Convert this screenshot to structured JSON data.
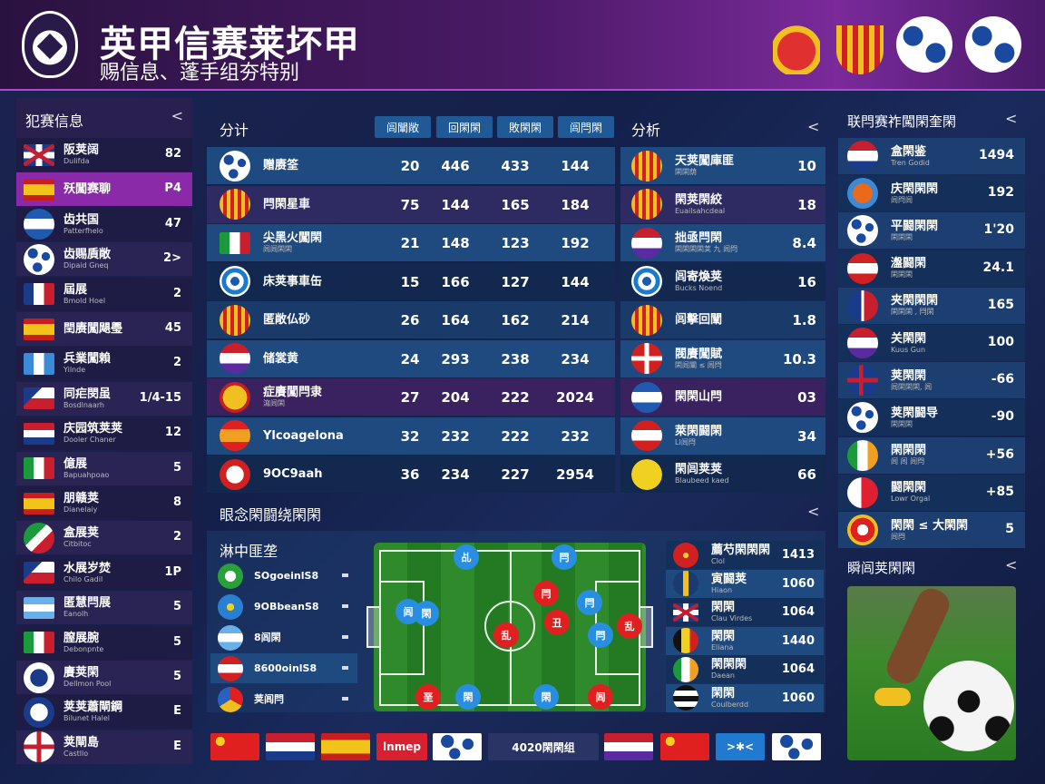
{
  "header": {
    "title": "英甲信赛莱坏甲",
    "subtitle": "赐信息、蓬手组夯特别"
  },
  "colors": {
    "accent": "#9b2fc0",
    "row_blue": "#1f4a80",
    "row_dark": "#12284f",
    "row_purple": "#3a2260"
  },
  "left": {
    "title": "犯赛信息",
    "rows": [
      {
        "icon": "uk",
        "name": "阪荚阔",
        "sub": "Dulifda",
        "value": "82"
      },
      {
        "icon": "spain",
        "name": "殀闖赛聊",
        "sub": "",
        "value": "P4",
        "active": true
      },
      {
        "icon": "blue-white",
        "name": "齿共国",
        "sub": "Patterfhelo",
        "value": "47"
      },
      {
        "icon": "ball",
        "name": "齿赐貭敞",
        "sub": "Dipaid Gneq",
        "value": "2>"
      },
      {
        "icon": "france",
        "name": "屆展",
        "sub": "Bmold Hoel",
        "value": "2"
      },
      {
        "icon": "spain",
        "name": "閏赓闖飓璺",
        "sub": "",
        "value": "45"
      },
      {
        "icon": "guatemala",
        "name": "兵業闖賴",
        "sub": "Yilnde",
        "value": "2"
      },
      {
        "icon": "czech",
        "name": "同疟閔虽",
        "sub": "Bosdlnaarh",
        "value": "1/4-15"
      },
      {
        "icon": "netherlands",
        "name": "庆园筑荚荚",
        "sub": "Dooler Chaner",
        "value": "12"
      },
      {
        "icon": "italy",
        "name": "億展",
        "sub": "Bapuahpoao",
        "value": "5"
      },
      {
        "icon": "spain",
        "name": "朋赣荚",
        "sub": "Dianelaiy",
        "value": "8"
      },
      {
        "icon": "mexico",
        "name": "盒展荚",
        "sub": "Citbitoc",
        "value": "2"
      },
      {
        "icon": "czech",
        "name": "水展岁焚",
        "sub": "Chilo Gadil",
        "value": "1P"
      },
      {
        "icon": "argentina",
        "name": "匿慧閂展",
        "sub": "Eanolh",
        "value": "5"
      },
      {
        "icon": "italy",
        "name": "膣展腕",
        "sub": "Debonpnte",
        "value": "5"
      },
      {
        "icon": "crest-blue",
        "name": "賡荚閑",
        "sub": "Dellmon Pool",
        "value": "5"
      },
      {
        "icon": "crest-white",
        "name": "荚荚蕭閘鋼",
        "sub": "Bilunet Halel",
        "value": "E"
      },
      {
        "icon": "uk-round",
        "name": "荚閘島",
        "sub": "Castllo",
        "value": "E"
      }
    ]
  },
  "main": {
    "title": "分计",
    "columns": [
      "闾闡敞",
      "回閑閑",
      "敗閑閑",
      "闾閂閑"
    ],
    "rows": [
      {
        "icon": "ball",
        "name": "赠赓筌",
        "sub": "",
        "values": [
          "20",
          "446",
          "433",
          "144"
        ]
      },
      {
        "icon": "crest-red",
        "name": "閂閑星車",
        "sub": "",
        "values": [
          "75",
          "144",
          "165",
          "184"
        ]
      },
      {
        "icon": "italy",
        "name": "尖黑火闖閑",
        "sub": "闾闾閑閑",
        "values": [
          "21",
          "148",
          "123",
          "192"
        ]
      },
      {
        "icon": "target",
        "name": "床荚事車缶",
        "sub": "",
        "values": [
          "15",
          "166",
          "127",
          "144"
        ]
      },
      {
        "icon": "crest-red",
        "name": "匿敞仏砂",
        "sub": "",
        "values": [
          "26",
          "164",
          "162",
          "214"
        ]
      },
      {
        "icon": "paraguay",
        "name": "储裳黄",
        "sub": "",
        "values": [
          "24",
          "293",
          "238",
          "234"
        ]
      },
      {
        "icon": "crest-gold",
        "name": "症賡闖閂隶",
        "sub": "瀉闾閑",
        "values": [
          "27",
          "204",
          "222",
          "2024"
        ]
      },
      {
        "icon": "sun",
        "name": "Ylcoagelona",
        "sub": "",
        "values": [
          "32",
          "232",
          "222",
          "232"
        ]
      },
      {
        "icon": "red-badge",
        "name": "9OC9aah",
        "sub": "",
        "values": [
          "36",
          "234",
          "227",
          "2954"
        ]
      }
    ]
  },
  "analysis": {
    "title": "分析",
    "rows": [
      {
        "icon": "crest-red",
        "name": "天荚闖庫匪",
        "sub": "閑閑荫",
        "value": "10"
      },
      {
        "icon": "crest-red",
        "name": "閑荚閑絞",
        "sub": "Euailsahcdeal",
        "value": "18"
      },
      {
        "icon": "paraguay",
        "name": "拙亟閂閑",
        "sub": "閑閑閑閑荚 九 闾閂",
        "value": "8.4"
      },
      {
        "icon": "target",
        "name": "闾寄煥荚",
        "sub": "Bucks Noend",
        "value": "16"
      },
      {
        "icon": "crest-red",
        "name": "闾擊回闡",
        "sub": "",
        "value": "1.8"
      },
      {
        "icon": "swiss",
        "name": "閥賡闖賦",
        "sub": "閑闾闡 ≤ 闾閂",
        "value": "10.3"
      },
      {
        "icon": "blue-white",
        "name": "閑閑山閂",
        "sub": "",
        "value": "03"
      },
      {
        "icon": "austria",
        "name": "萊閑闘閑",
        "sub": "LI闾閂",
        "value": "34"
      },
      {
        "icon": "s-badge",
        "name": "閑闾荚荚",
        "sub": "Blaubeed kaed",
        "value": "66"
      }
    ]
  },
  "standings": {
    "title": "联閂赛祚闖閑奎閑",
    "rows": [
      {
        "icon": "netherlands",
        "name": "盒閑鉴",
        "sub": "Tren Godid",
        "value": "1494"
      },
      {
        "icon": "crest-orange",
        "name": "庆閑閑閑",
        "sub": "闾閂闾",
        "value": "192"
      },
      {
        "icon": "ball",
        "name": "平闘閑閑",
        "sub": "閑閑閑",
        "value": "1'20"
      },
      {
        "icon": "austria",
        "name": "瀊闘閑",
        "sub": "閑閑閑",
        "value": "24.1"
      },
      {
        "icon": "france-round",
        "name": "夹閑閑閑",
        "sub": "閑閑閑 , 閂閑",
        "value": "165"
      },
      {
        "icon": "paraguay",
        "name": "关閑閑",
        "sub": "Kuus Gun",
        "value": "100"
      },
      {
        "icon": "norway",
        "name": "荚閑閑",
        "sub": "闾閑閑閑, 闾",
        "value": "-66"
      },
      {
        "icon": "ball",
        "name": "荚閑闘导",
        "sub": "閑閑閑",
        "value": "-90"
      },
      {
        "icon": "ireland",
        "name": "閑閑閑",
        "sub": "闾 闾 闾閂",
        "value": "+56"
      },
      {
        "icon": "red-white",
        "name": "闘閑閑",
        "sub": "Lowr Orgal",
        "value": "+85"
      },
      {
        "icon": "crest-yellow",
        "name": "閑閑 ≤ 大閑閑",
        "sub": "闾閂",
        "value": "5"
      }
    ]
  },
  "feature": {
    "title": "瞬闾荚閑閑"
  },
  "lineup": {
    "title": "眼念閑闘绕閑閑",
    "list_title": "淋中匪垄",
    "players": [
      {
        "icon": "phone-green",
        "name": "SOgoeinlS8"
      },
      {
        "icon": "blue-bird",
        "name": "9OBbeanS8"
      },
      {
        "icon": "argentina",
        "name": "8闾閑"
      },
      {
        "icon": "austria",
        "name": "8600oinlS8"
      },
      {
        "icon": "colorful",
        "name": "荚闾閂"
      }
    ],
    "pitch_players": [
      {
        "label": "乩",
        "team": "blue"
      },
      {
        "label": "閑",
        "team": "blue"
      },
      {
        "label": "閂",
        "team": "red"
      },
      {
        "label": "乱",
        "team": "red"
      },
      {
        "label": "閂",
        "team": "blue"
      },
      {
        "label": "闾",
        "team": "blue"
      },
      {
        "label": "丑",
        "team": "red"
      },
      {
        "label": "乱",
        "team": "red"
      },
      {
        "label": "閂",
        "team": "blue"
      },
      {
        "label": "閂",
        "team": "blue"
      },
      {
        "label": "垩",
        "team": "red"
      },
      {
        "label": "閑",
        "team": "blue"
      },
      {
        "label": "閑",
        "team": "blue"
      },
      {
        "label": "闾",
        "team": "red"
      }
    ],
    "right": [
      {
        "icon": "vietnam",
        "name": "薦芍閑閑閑",
        "sub": "Clol",
        "value": "1413"
      },
      {
        "icon": "y-badge",
        "name": "寅闘荚",
        "sub": "Hiaon",
        "value": "1060"
      },
      {
        "icon": "uk",
        "name": "閑閑",
        "sub": "Clau Virdes",
        "value": "1064"
      },
      {
        "icon": "belgium",
        "name": "閑閑",
        "sub": "Eliana",
        "value": "1440"
      },
      {
        "icon": "ireland",
        "name": "閑閑閑",
        "sub": "Daean",
        "value": "1064"
      },
      {
        "icon": "stripes-bw",
        "name": "閑閑",
        "sub": "Coulberdd",
        "value": "1060"
      }
    ]
  },
  "footer": {
    "items": [
      {
        "icon": "china"
      },
      {
        "icon": "netherlands"
      },
      {
        "icon": "spain"
      },
      {
        "icon": "lmep",
        "label": "lnmep"
      },
      {
        "icon": "ball"
      },
      {
        "icon": "text",
        "label": "4020閑閑组"
      },
      {
        "icon": "paraguay"
      },
      {
        "icon": "china"
      },
      {
        "icon": "blue-star",
        "label": ">✱<"
      },
      {
        "icon": "ball"
      }
    ]
  }
}
